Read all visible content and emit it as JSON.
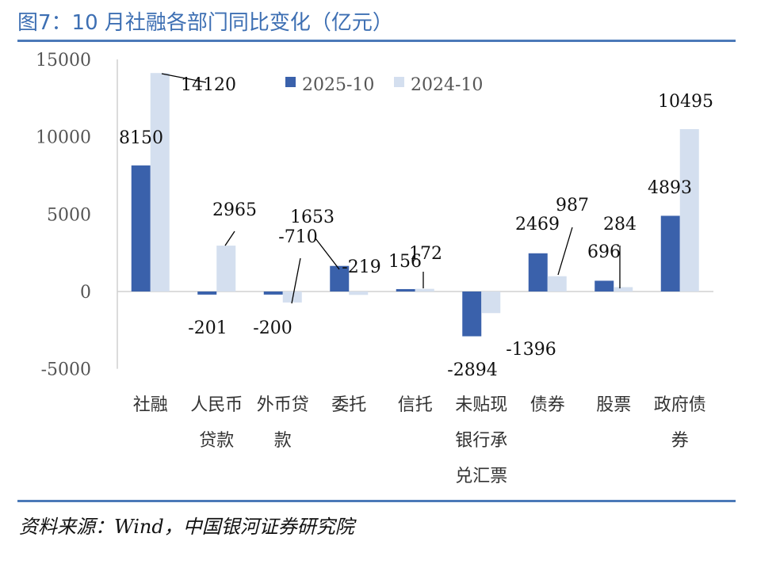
{
  "title": "图7：10 月社融各部门同比变化（亿元）",
  "source": "资料来源：Wind，中国银河证券研究院",
  "colors": {
    "accent": "#4b79b8",
    "series1": "#3a61ab",
    "series2": "#d4dfef"
  },
  "chart_data": {
    "type": "bar",
    "categories": [
      "社融",
      "人民币贷款",
      "外币贷款",
      "委托",
      "信托",
      "未贴现银行承兑汇票",
      "债券",
      "股票",
      "政府债券"
    ],
    "category_lines": [
      [
        "社融"
      ],
      [
        "人民币",
        "贷款"
      ],
      [
        "外币贷",
        "款"
      ],
      [
        "委托"
      ],
      [
        "信托"
      ],
      [
        "未贴现",
        "银行承",
        "兑汇票"
      ],
      [
        "债券"
      ],
      [
        "股票"
      ],
      [
        "政府债",
        "券"
      ]
    ],
    "series": [
      {
        "name": "2025-10",
        "values": [
          8150,
          -201,
          -200,
          1653,
          156,
          -2894,
          2469,
          696,
          4893
        ],
        "labels": [
          "8150",
          "-201",
          "-200",
          "1653",
          "156",
          "-2894",
          "2469",
          "696",
          "4893"
        ]
      },
      {
        "name": "2024-10",
        "values": [
          14120,
          2965,
          -710,
          -219,
          172,
          -1396,
          987,
          284,
          10495
        ],
        "labels": [
          "14120",
          "2965",
          "-710",
          "-219",
          "172",
          "-1396",
          "987",
          "284",
          "10495"
        ]
      }
    ],
    "ylim": [
      -5000,
      15000
    ],
    "yticks": [
      -5000,
      0,
      5000,
      10000,
      15000
    ],
    "ytick_labels": [
      "-5000",
      "0",
      "5000",
      "10000",
      "15000"
    ],
    "legend": "top-right",
    "grid": false
  }
}
